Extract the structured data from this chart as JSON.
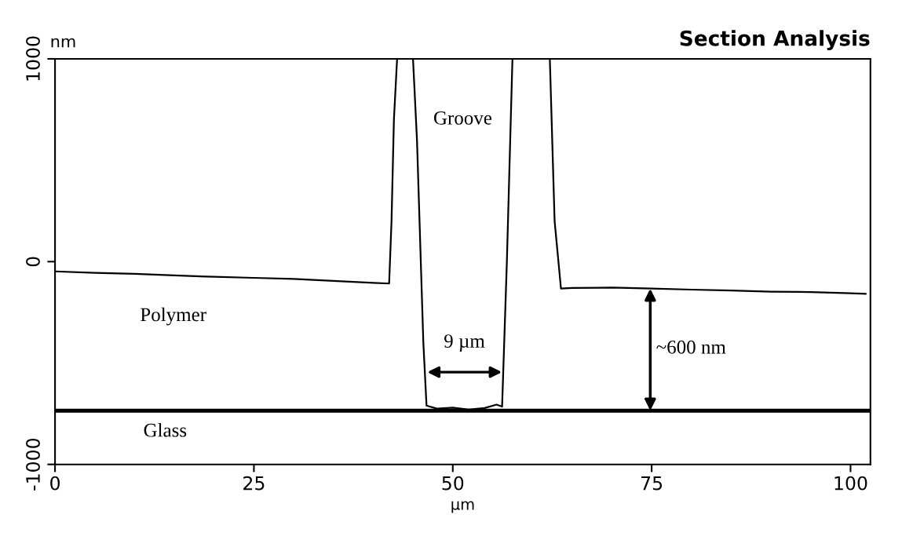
{
  "chart_data": {
    "type": "line",
    "title": "Section Analysis",
    "xlabel": "µm",
    "ylabel": "nm",
    "x": [
      0,
      5,
      10,
      15,
      20,
      25,
      30,
      35,
      40,
      42.0,
      42.3,
      42.6,
      43.0,
      45.0,
      45.5,
      46.3,
      46.7,
      48,
      50,
      52,
      54,
      55.5,
      56.2,
      56.8,
      57.5,
      62.2,
      62.8,
      63.6,
      65,
      70,
      75,
      80,
      85,
      90,
      95,
      100,
      101.9
    ],
    "series": [
      {
        "color": "#000000",
        "values": [
          -48,
          -55,
          -60,
          -68,
          -75,
          -80,
          -85,
          -95,
          -105,
          -108,
          200,
          700,
          1000,
          1000,
          600,
          -400,
          -710,
          -725,
          -720,
          -730,
          -722,
          -705,
          -715,
          0,
          1000,
          1000,
          200,
          -133,
          -130,
          -128,
          -133,
          -138,
          -142,
          -148,
          -150,
          -156,
          -159
        ]
      }
    ],
    "xlim": [
      0,
      102.5
    ],
    "xticks": [
      0,
      25,
      50,
      75,
      100
    ],
    "ylim": [
      -1000,
      1000
    ],
    "yticks": [
      -1000,
      0,
      1000
    ],
    "ref_lines": [
      {
        "axis": "y",
        "value": -735,
        "color": "#000000"
      }
    ],
    "annotations": [
      "Groove",
      "Polymer",
      "Glass",
      "9 µm",
      "~600 nm"
    ],
    "grid": false,
    "legend": false,
    "marker": "none",
    "line_style": "solid"
  }
}
